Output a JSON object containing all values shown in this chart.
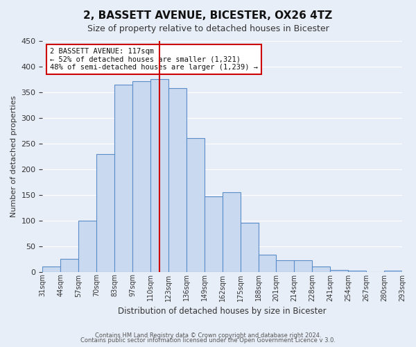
{
  "title": "2, BASSETT AVENUE, BICESTER, OX26 4TZ",
  "subtitle": "Size of property relative to detached houses in Bicester",
  "xlabel": "Distribution of detached houses by size in Bicester",
  "ylabel": "Number of detached properties",
  "bin_labels": [
    "31sqm",
    "44sqm",
    "57sqm",
    "70sqm",
    "83sqm",
    "97sqm",
    "110sqm",
    "123sqm",
    "136sqm",
    "149sqm",
    "162sqm",
    "175sqm",
    "188sqm",
    "201sqm",
    "214sqm",
    "228sqm",
    "241sqm",
    "254sqm",
    "267sqm",
    "280sqm",
    "293sqm"
  ],
  "bar_heights": [
    10,
    25,
    100,
    230,
    365,
    372,
    375,
    358,
    260,
    147,
    155,
    95,
    33,
    22,
    22,
    10,
    3,
    2,
    0,
    2
  ],
  "bar_color": "#c9d9f0",
  "bar_edge_color": "#5b8dc9",
  "property_bin_index": 6.5,
  "vline_color": "#cc0000",
  "annotation_title": "2 BASSETT AVENUE: 117sqm",
  "annotation_line1": "← 52% of detached houses are smaller (1,321)",
  "annotation_line2": "48% of semi-detached houses are larger (1,239) →",
  "annotation_box_edge_color": "#cc0000",
  "annotation_box_face_color": "#ffffff",
  "ylim": [
    0,
    450
  ],
  "yticks": [
    0,
    50,
    100,
    150,
    200,
    250,
    300,
    350,
    400,
    450
  ],
  "footer1": "Contains HM Land Registry data © Crown copyright and database right 2024.",
  "footer2": "Contains public sector information licensed under the Open Government Licence v 3.0.",
  "background_color": "#e8eef8",
  "grid_color": "#ffffff"
}
